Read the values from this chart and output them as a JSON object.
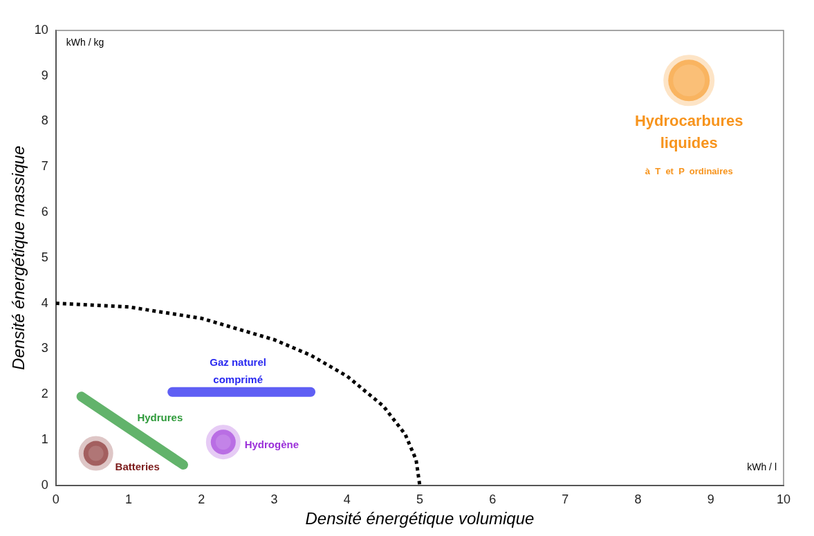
{
  "chart_data": {
    "type": "scatter",
    "xlabel": "Densité énergétique volumique",
    "ylabel": "Densité énergétique massique",
    "xlim": [
      0,
      10
    ],
    "ylim": [
      0,
      10
    ],
    "xticks": [
      0,
      1,
      2,
      3,
      4,
      5,
      6,
      7,
      8,
      9,
      10
    ],
    "yticks": [
      0,
      1,
      2,
      3,
      4,
      5,
      6,
      7,
      8,
      9,
      10
    ],
    "grid": false,
    "legend": false,
    "annotations": [
      "kWh / kg",
      "kWh / l",
      "à  T  et  P  ordinaires"
    ],
    "series": [
      {
        "name": "Hydrocarbures liquides",
        "color": "#f7941d",
        "marker": "circle",
        "x": [
          8.7
        ],
        "values": [
          8.9
        ]
      },
      {
        "name": "Gaz naturel comprimé",
        "type": "line",
        "color": "#2a2af0",
        "x": [
          1.6,
          3.5
        ],
        "values": [
          2.05,
          2.05
        ]
      },
      {
        "name": "Hydrures",
        "type": "line",
        "color": "#2e9a3a",
        "x": [
          0.35,
          1.75
        ],
        "values": [
          1.95,
          0.45
        ]
      },
      {
        "name": "Hydrogène",
        "color": "#9b30d9",
        "marker": "circle",
        "x": [
          2.3
        ],
        "values": [
          0.95
        ]
      },
      {
        "name": "Batteries",
        "color": "#7b1a1a",
        "marker": "circle",
        "x": [
          0.55
        ],
        "values": [
          0.7
        ]
      },
      {
        "type": "line",
        "color": "#000000",
        "line_style": "dotted",
        "x": [
          0,
          1,
          2,
          3,
          3.5,
          4,
          4.5,
          4.8,
          4.95,
          5
        ],
        "values": [
          4,
          3.92,
          3.67,
          3.2,
          2.86,
          2.4,
          1.74,
          1.12,
          0.56,
          0
        ]
      }
    ]
  }
}
